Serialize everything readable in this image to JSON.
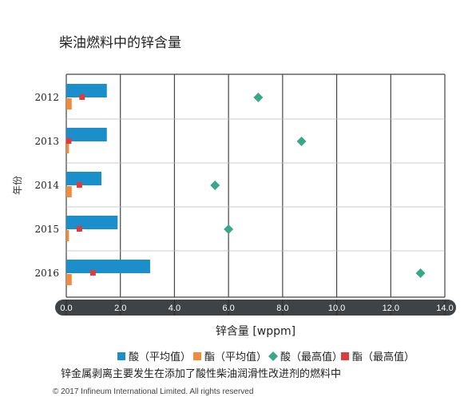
{
  "chart_data": {
    "type": "bar",
    "title": "柴油燃料中的锌含量",
    "ylabel": "年份",
    "xlabel": "锌含量 [wppm]",
    "categories": [
      "2012",
      "2013",
      "2014",
      "2015",
      "2016"
    ],
    "xlim": [
      0,
      14
    ],
    "xticks": [
      "0.0",
      "2.0",
      "4.0",
      "6.0",
      "8.0",
      "10.0",
      "12.0",
      "14.0"
    ],
    "grid": "vertical",
    "legend_position": "bottom",
    "series": [
      {
        "name": "酸（平均值）",
        "kind": "bar",
        "color": "#1a8fcc",
        "values": [
          1.5,
          1.5,
          1.3,
          1.9,
          3.1
        ]
      },
      {
        "name": "酯（平均值）",
        "kind": "bar",
        "color": "#f08a3c",
        "values": [
          0.2,
          0.1,
          0.2,
          0.1,
          0.2
        ]
      },
      {
        "name": "酸（最高值）",
        "kind": "diamond",
        "color": "#3aa68a",
        "values": [
          7.1,
          8.7,
          5.5,
          6.0,
          13.1
        ]
      },
      {
        "name": "酯（最高值）",
        "kind": "square",
        "color": "#e03a3a",
        "values": [
          0.6,
          0.1,
          0.5,
          0.5,
          1.0
        ]
      }
    ]
  },
  "caption": "锌金属剥离主要发生在添加了酸性柴油润滑性改进剂的燃料中",
  "copyright": "© 2017 Infineum International Limited. All rights reserved"
}
